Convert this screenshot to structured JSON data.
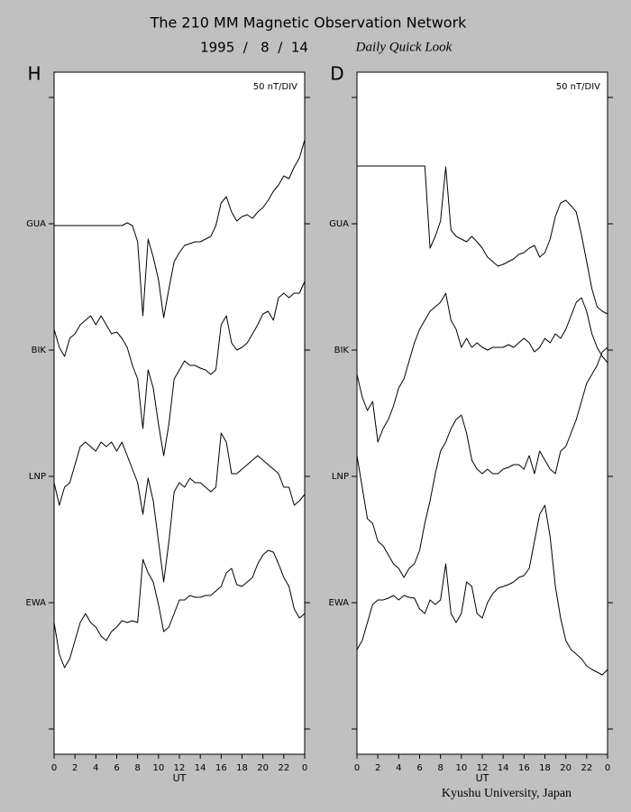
{
  "header": {
    "title": "The 210 MM Magnetic Observation Network",
    "date": "1995  /   8  /  14",
    "subtitle": "Daily Quick Look"
  },
  "footer": "Kyushu University, Japan",
  "chart_data": [
    {
      "type": "line",
      "panel": "H",
      "scale": "50 nT/DIV",
      "xlabel": "UT",
      "x": [
        0,
        0.5,
        1,
        1.5,
        2,
        2.5,
        3,
        3.5,
        4,
        4.5,
        5,
        5.5,
        6,
        6.5,
        7,
        7.5,
        8,
        8.5,
        9,
        9.5,
        10,
        10.5,
        11,
        11.5,
        12,
        12.5,
        13,
        13.5,
        14,
        14.5,
        15,
        15.5,
        16,
        16.5,
        17,
        17.5,
        18,
        18.5,
        19,
        19.5,
        20,
        20.5,
        21,
        21.5,
        22,
        22.5,
        23,
        23.5,
        24
      ],
      "xlim": [
        0,
        24
      ],
      "xticks": [
        0,
        2,
        4,
        6,
        8,
        10,
        12,
        14,
        16,
        18,
        20,
        22,
        {
          "value": 24,
          "label": "0"
        }
      ],
      "ylim": [
        -28,
        728
      ],
      "yticks": [
        {
          "value": 0,
          "label": null
        },
        {
          "value": 140,
          "label": "EWA"
        },
        {
          "value": 280,
          "label": "LNP"
        },
        {
          "value": 420,
          "label": "BIK"
        },
        {
          "value": 560,
          "label": "GUA"
        },
        {
          "value": 700,
          "label": null
        }
      ],
      "series": [
        {
          "color": "#000000",
          "values": [
            558,
            558,
            558,
            558,
            558,
            558,
            558,
            558,
            558,
            558,
            558,
            558,
            558,
            558,
            561,
            558,
            540,
            458,
            543,
            523,
            498,
            456,
            488,
            518,
            528,
            536,
            538,
            540,
            540,
            543,
            546,
            558,
            583,
            590,
            573,
            563,
            568,
            570,
            566,
            573,
            578,
            586,
            596,
            603,
            613,
            610,
            623,
            633,
            653
          ]
        },
        {
          "color": "#000000",
          "values": [
            443,
            423,
            413,
            433,
            438,
            448,
            453,
            458,
            448,
            458,
            448,
            438,
            440,
            433,
            423,
            403,
            388,
            333,
            398,
            378,
            338,
            303,
            338,
            388,
            398,
            408,
            403,
            403,
            400,
            398,
            393,
            398,
            448,
            458,
            428,
            420,
            423,
            428,
            438,
            448,
            460,
            463,
            453,
            478,
            483,
            478,
            483,
            483,
            496
          ]
        },
        {
          "color": "#000000",
          "values": [
            273,
            248,
            268,
            273,
            293,
            313,
            318,
            313,
            308,
            318,
            313,
            318,
            308,
            318,
            303,
            288,
            273,
            238,
            278,
            253,
            208,
            163,
            208,
            263,
            273,
            268,
            278,
            273,
            273,
            268,
            263,
            268,
            328,
            318,
            283,
            283,
            288,
            293,
            298,
            303,
            298,
            293,
            288,
            283,
            268,
            268,
            248,
            253,
            260
          ]
        },
        {
          "color": "#000000",
          "values": [
            118,
            83,
            68,
            78,
            98,
            118,
            128,
            118,
            113,
            103,
            98,
            108,
            113,
            120,
            118,
            120,
            118,
            188,
            173,
            163,
            138,
            108,
            113,
            128,
            143,
            143,
            148,
            146,
            146,
            148,
            148,
            153,
            158,
            173,
            178,
            160,
            158,
            163,
            168,
            183,
            193,
            198,
            196,
            183,
            168,
            158,
            133,
            123,
            128
          ]
        }
      ]
    },
    {
      "type": "line",
      "panel": "D",
      "scale": "50 nT/DIV",
      "xlabel": "UT",
      "x": [
        0,
        0.5,
        1,
        1.5,
        2,
        2.5,
        3,
        3.5,
        4,
        4.5,
        5,
        5.5,
        6,
        6.5,
        7,
        7.5,
        8,
        8.5,
        9,
        9.5,
        10,
        10.5,
        11,
        11.5,
        12,
        12.5,
        13,
        13.5,
        14,
        14.5,
        15,
        15.5,
        16,
        16.5,
        17,
        17.5,
        18,
        18.5,
        19,
        19.5,
        20,
        20.5,
        21,
        21.5,
        22,
        22.5,
        23,
        23.5,
        24
      ],
      "xlim": [
        0,
        24
      ],
      "xticks": [
        0,
        2,
        4,
        6,
        8,
        10,
        12,
        14,
        16,
        18,
        20,
        22,
        {
          "value": 24,
          "label": "0"
        }
      ],
      "ylim": [
        -28,
        728
      ],
      "yticks": [
        {
          "value": 0,
          "label": null
        },
        {
          "value": 140,
          "label": "EWA"
        },
        {
          "value": 280,
          "label": "LNP"
        },
        {
          "value": 420,
          "label": "BIK"
        },
        {
          "value": 560,
          "label": "GUA"
        },
        {
          "value": 700,
          "label": null
        }
      ],
      "series": [
        {
          "color": "#000000",
          "values": [
            624,
            624,
            624,
            624,
            624,
            624,
            624,
            624,
            624,
            624,
            624,
            624,
            624,
            624,
            533,
            546,
            563,
            623,
            553,
            546,
            543,
            540,
            546,
            540,
            533,
            523,
            518,
            513,
            515,
            518,
            521,
            526,
            528,
            533,
            536,
            523,
            528,
            543,
            568,
            583,
            586,
            580,
            573,
            548,
            518,
            488,
            468,
            463,
            460
          ]
        },
        {
          "color": "#000000",
          "values": [
            393,
            368,
            353,
            363,
            318,
            333,
            343,
            358,
            378,
            388,
            408,
            428,
            443,
            453,
            463,
            468,
            473,
            483,
            453,
            443,
            423,
            433,
            423,
            428,
            423,
            420,
            423,
            423,
            423,
            426,
            423,
            428,
            433,
            428,
            418,
            423,
            433,
            428,
            438,
            433,
            443,
            458,
            473,
            478,
            463,
            438,
            423,
            413,
            406
          ]
        },
        {
          "color": "#000000",
          "values": [
            303,
            268,
            233,
            228,
            208,
            203,
            193,
            183,
            178,
            168,
            178,
            183,
            198,
            228,
            253,
            283,
            308,
            318,
            333,
            343,
            348,
            328,
            298,
            288,
            283,
            288,
            283,
            283,
            288,
            290,
            293,
            293,
            288,
            303,
            283,
            308,
            298,
            288,
            283,
            308,
            313,
            328,
            343,
            363,
            383,
            393,
            403,
            418,
            423
          ]
        },
        {
          "color": "#000000",
          "values": [
            88,
            98,
            118,
            138,
            143,
            143,
            145,
            148,
            143,
            148,
            146,
            145,
            133,
            128,
            143,
            138,
            143,
            183,
            128,
            118,
            128,
            163,
            158,
            128,
            123,
            140,
            150,
            156,
            158,
            160,
            163,
            168,
            170,
            178,
            208,
            238,
            248,
            213,
            158,
            123,
            98,
            88,
            83,
            78,
            70,
            66,
            63,
            60,
            66
          ]
        }
      ]
    }
  ]
}
